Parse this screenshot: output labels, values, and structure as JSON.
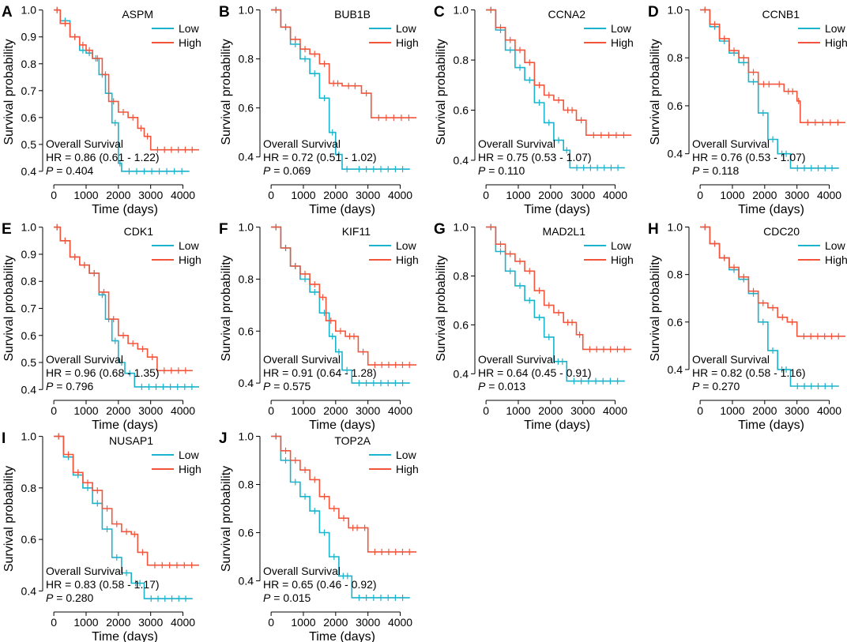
{
  "figure": {
    "colors": {
      "low": "#1ab3cc",
      "high": "#f2553b"
    },
    "stat_label": "Overall Survival",
    "hr_prefix": "HR = ",
    "p_label": "P",
    "p_sep": " = "
  },
  "chart_data": [
    {
      "type": "line",
      "panel": "A",
      "gene": "ASPM",
      "title": "ASPM",
      "xlabel": "Time (days)",
      "ylabel": "Survival probability",
      "xticks": [
        0,
        1000,
        2000,
        3000,
        4000
      ],
      "xlim": [
        -150,
        4550
      ],
      "yticks": [
        "0.4",
        "0.5",
        "0.6",
        "0.7",
        "0.8",
        "0.9",
        "1.0"
      ],
      "ylim": [
        0.385,
        1.005
      ],
      "hr": "0.86 (0.61 -  1.22)",
      "p": "0.404",
      "legend": [
        "Low",
        "High"
      ],
      "series": [
        {
          "name": "Low",
          "x": [
            0,
            200,
            500,
            800,
            1000,
            1200,
            1400,
            1600,
            1800,
            2000,
            2100,
            4200
          ],
          "y": [
            1.0,
            0.96,
            0.9,
            0.85,
            0.84,
            0.82,
            0.76,
            0.69,
            0.58,
            0.43,
            0.4,
            0.4
          ]
        },
        {
          "name": "High",
          "x": [
            0,
            200,
            500,
            800,
            1000,
            1200,
            1500,
            1700,
            2000,
            2300,
            2600,
            2800,
            3000,
            4500
          ],
          "y": [
            1.0,
            0.95,
            0.9,
            0.87,
            0.85,
            0.82,
            0.76,
            0.66,
            0.62,
            0.6,
            0.56,
            0.53,
            0.48,
            0.48
          ]
        }
      ]
    },
    {
      "type": "line",
      "panel": "B",
      "gene": "BUB1B",
      "title": "BUB1B",
      "xlabel": "Time (days)",
      "ylabel": "Survival probability",
      "xticks": [
        0,
        1000,
        2000,
        3000,
        4000
      ],
      "xlim": [
        -150,
        4550
      ],
      "yticks": [
        "0.4",
        "0.6",
        "0.8",
        "1.0"
      ],
      "ylim": [
        0.325,
        1.005
      ],
      "hr": "0.72 (0.51 -  1.02)",
      "p": "0.069",
      "legend": [
        "Low",
        "High"
      ],
      "series": [
        {
          "name": "Low",
          "x": [
            0,
            300,
            600,
            900,
            1200,
            1500,
            1800,
            2000,
            2200,
            2500,
            4300
          ],
          "y": [
            1.0,
            0.93,
            0.86,
            0.8,
            0.74,
            0.64,
            0.5,
            0.41,
            0.35,
            0.35,
            0.35
          ]
        },
        {
          "name": "High",
          "x": [
            0,
            300,
            600,
            900,
            1200,
            1500,
            1800,
            2200,
            2800,
            3100,
            4500
          ],
          "y": [
            1.0,
            0.93,
            0.88,
            0.84,
            0.82,
            0.78,
            0.7,
            0.69,
            0.66,
            0.56,
            0.56
          ]
        }
      ]
    },
    {
      "type": "line",
      "panel": "C",
      "gene": "CCNA2",
      "title": "CCNA2",
      "xlabel": "Time (days)",
      "ylabel": "Survival probability",
      "xticks": [
        0,
        1000,
        2000,
        3000,
        4000
      ],
      "xlim": [
        -150,
        4550
      ],
      "yticks": [
        "0.4",
        "0.6",
        "0.8",
        "1.0"
      ],
      "ylim": [
        0.34,
        1.005
      ],
      "hr": "0.75 (0.53 -  1.07)",
      "p": "0.110",
      "legend": [
        "Low",
        "High"
      ],
      "series": [
        {
          "name": "Low",
          "x": [
            0,
            300,
            600,
            900,
            1200,
            1500,
            1800,
            2100,
            2400,
            2600,
            4300
          ],
          "y": [
            1.0,
            0.92,
            0.84,
            0.77,
            0.72,
            0.63,
            0.55,
            0.48,
            0.44,
            0.37,
            0.37
          ]
        },
        {
          "name": "High",
          "x": [
            0,
            300,
            600,
            900,
            1200,
            1500,
            1800,
            2100,
            2400,
            2800,
            3100,
            4500
          ],
          "y": [
            1.0,
            0.93,
            0.88,
            0.84,
            0.79,
            0.7,
            0.66,
            0.64,
            0.6,
            0.56,
            0.5,
            0.5
          ]
        }
      ]
    },
    {
      "type": "line",
      "panel": "D",
      "gene": "CCNB1",
      "title": "CCNB1",
      "xlabel": "Time (days)",
      "ylabel": "Survival probability",
      "xticks": [
        0,
        1000,
        2000,
        3000,
        4000
      ],
      "xlim": [
        -150,
        4550
      ],
      "yticks": [
        "0.4",
        "0.6",
        "0.8",
        "1.0"
      ],
      "ylim": [
        0.31,
        1.005
      ],
      "hr": "0.76 (0.53 -  1.07)",
      "p": "0.118",
      "legend": [
        "Low",
        "High"
      ],
      "series": [
        {
          "name": "Low",
          "x": [
            0,
            300,
            600,
            900,
            1200,
            1500,
            1800,
            2100,
            2400,
            2800,
            4300
          ],
          "y": [
            1.0,
            0.93,
            0.87,
            0.82,
            0.78,
            0.7,
            0.57,
            0.46,
            0.4,
            0.34,
            0.34
          ]
        },
        {
          "name": "High",
          "x": [
            0,
            300,
            600,
            900,
            1200,
            1500,
            1800,
            2300,
            2600,
            3000,
            3100,
            4500
          ],
          "y": [
            1.0,
            0.94,
            0.88,
            0.83,
            0.8,
            0.74,
            0.69,
            0.69,
            0.66,
            0.62,
            0.53,
            0.53
          ]
        }
      ]
    },
    {
      "type": "line",
      "panel": "E",
      "gene": "CDK1",
      "title": "CDK1",
      "xlabel": "Time (days)",
      "ylabel": "Survival probability",
      "xticks": [
        0,
        1000,
        2000,
        3000,
        4000
      ],
      "xlim": [
        -150,
        4550
      ],
      "yticks": [
        "0.4",
        "0.5",
        "0.6",
        "0.7",
        "0.8",
        "0.9",
        "1.0"
      ],
      "ylim": [
        0.395,
        1.005
      ],
      "hr": "0.96 (0.68 -  1.35)",
      "p": "0.796",
      "legend": [
        "Low",
        "High"
      ],
      "series": [
        {
          "name": "Low",
          "x": [
            0,
            200,
            500,
            800,
            1100,
            1400,
            1600,
            1800,
            2000,
            2200,
            2500,
            4500
          ],
          "y": [
            1.0,
            0.95,
            0.89,
            0.86,
            0.83,
            0.75,
            0.66,
            0.58,
            0.5,
            0.46,
            0.41,
            0.41
          ]
        },
        {
          "name": "High",
          "x": [
            0,
            200,
            500,
            800,
            1100,
            1400,
            1700,
            2000,
            2300,
            2600,
            2900,
            3200,
            4300
          ],
          "y": [
            1.0,
            0.95,
            0.89,
            0.86,
            0.83,
            0.76,
            0.66,
            0.6,
            0.57,
            0.55,
            0.52,
            0.47,
            0.47
          ]
        }
      ]
    },
    {
      "type": "line",
      "panel": "F",
      "gene": "KIF11",
      "title": "KIF11",
      "xlabel": "Time (days)",
      "ylabel": "Survival probability",
      "xticks": [
        0,
        1000,
        2000,
        3000,
        4000
      ],
      "xlim": [
        -150,
        4550
      ],
      "yticks": [
        "0.4",
        "0.6",
        "0.8",
        "1.0"
      ],
      "ylim": [
        0.37,
        1.005
      ],
      "hr": "0.91 (0.64 -  1.28)",
      "p": "0.575",
      "legend": [
        "Low",
        "High"
      ],
      "series": [
        {
          "name": "Low",
          "x": [
            0,
            300,
            600,
            900,
            1200,
            1500,
            1800,
            2000,
            2200,
            2500,
            4300
          ],
          "y": [
            1.0,
            0.92,
            0.85,
            0.8,
            0.75,
            0.67,
            0.58,
            0.52,
            0.45,
            0.4,
            0.4
          ]
        },
        {
          "name": "High",
          "x": [
            0,
            300,
            600,
            900,
            1200,
            1500,
            1700,
            2000,
            2300,
            2700,
            3000,
            4500
          ],
          "y": [
            1.0,
            0.92,
            0.85,
            0.82,
            0.78,
            0.73,
            0.64,
            0.6,
            0.58,
            0.52,
            0.47,
            0.47
          ]
        }
      ]
    },
    {
      "type": "line",
      "panel": "G",
      "gene": "MAD2L1",
      "title": "MAD2L1",
      "xlabel": "Time (days)",
      "ylabel": "Survival probability",
      "xticks": [
        0,
        1000,
        2000,
        3000,
        4000
      ],
      "xlim": [
        -150,
        4550
      ],
      "yticks": [
        "0.4",
        "0.6",
        "0.8",
        "1.0"
      ],
      "ylim": [
        0.33,
        1.005
      ],
      "hr": "0.64 (0.45 -  0.91)",
      "p": "0.013",
      "legend": [
        "Low",
        "High"
      ],
      "series": [
        {
          "name": "Low",
          "x": [
            0,
            300,
            600,
            900,
            1200,
            1500,
            1800,
            2100,
            2500,
            4300
          ],
          "y": [
            1.0,
            0.9,
            0.82,
            0.76,
            0.7,
            0.63,
            0.55,
            0.45,
            0.37,
            0.37
          ]
        },
        {
          "name": "High",
          "x": [
            0,
            300,
            600,
            900,
            1200,
            1500,
            1800,
            2100,
            2400,
            2800,
            3000,
            4500
          ],
          "y": [
            1.0,
            0.93,
            0.89,
            0.86,
            0.82,
            0.74,
            0.68,
            0.65,
            0.61,
            0.56,
            0.5,
            0.5
          ]
        }
      ]
    },
    {
      "type": "line",
      "panel": "H",
      "gene": "CDC20",
      "title": "CDC20",
      "xlabel": "Time (days)",
      "ylabel": "Survival probability",
      "xticks": [
        0,
        1000,
        2000,
        3000,
        4000
      ],
      "xlim": [
        -150,
        4550
      ],
      "yticks": [
        "0.4",
        "0.6",
        "0.8",
        "1.0"
      ],
      "ylim": [
        0.31,
        1.005
      ],
      "hr": "0.82 (0.58 -  1.16)",
      "p": "0.270",
      "legend": [
        "Low",
        "High"
      ],
      "series": [
        {
          "name": "Low",
          "x": [
            0,
            300,
            600,
            900,
            1200,
            1500,
            1800,
            2100,
            2400,
            2800,
            4300
          ],
          "y": [
            1.0,
            0.93,
            0.87,
            0.82,
            0.78,
            0.72,
            0.6,
            0.48,
            0.4,
            0.33,
            0.33
          ]
        },
        {
          "name": "High",
          "x": [
            0,
            300,
            600,
            900,
            1200,
            1500,
            1800,
            2100,
            2400,
            2700,
            3000,
            4500
          ],
          "y": [
            1.0,
            0.93,
            0.87,
            0.83,
            0.79,
            0.73,
            0.68,
            0.66,
            0.62,
            0.6,
            0.54,
            0.54
          ]
        }
      ]
    },
    {
      "type": "line",
      "panel": "I",
      "gene": "NUSAP1",
      "title": "NUSAP1",
      "xlabel": "Time (days)",
      "ylabel": "Survival probability",
      "xticks": [
        0,
        1000,
        2000,
        3000,
        4000
      ],
      "xlim": [
        -150,
        4550
      ],
      "yticks": [
        "0.4",
        "0.6",
        "0.8",
        "1.0"
      ],
      "ylim": [
        0.355,
        1.005
      ],
      "hr": "0.83 (0.58 -  1.17)",
      "p": "0.280",
      "legend": [
        "Low",
        "High"
      ],
      "series": [
        {
          "name": "Low",
          "x": [
            0,
            300,
            600,
            900,
            1200,
            1500,
            1800,
            2100,
            2400,
            2800,
            4300
          ],
          "y": [
            1.0,
            0.92,
            0.85,
            0.8,
            0.74,
            0.64,
            0.53,
            0.47,
            0.43,
            0.37,
            0.37
          ]
        },
        {
          "name": "High",
          "x": [
            0,
            300,
            600,
            900,
            1200,
            1500,
            1800,
            2100,
            2400,
            2600,
            2900,
            4500
          ],
          "y": [
            1.0,
            0.93,
            0.86,
            0.82,
            0.79,
            0.72,
            0.66,
            0.63,
            0.62,
            0.55,
            0.5,
            0.5
          ]
        }
      ]
    },
    {
      "type": "line",
      "panel": "J",
      "gene": "TOP2A",
      "title": "TOP2A",
      "xlabel": "Time (days)",
      "ylabel": "Survival probability",
      "xticks": [
        0,
        1000,
        2000,
        3000,
        4000
      ],
      "xlim": [
        -150,
        4550
      ],
      "yticks": [
        "0.4",
        "0.6",
        "0.8",
        "1.0"
      ],
      "ylim": [
        0.31,
        1.005
      ],
      "hr": "0.65 (0.46 -  0.92)",
      "p": "0.015",
      "legend": [
        "Low",
        "High"
      ],
      "series": [
        {
          "name": "Low",
          "x": [
            0,
            300,
            600,
            900,
            1200,
            1500,
            1800,
            2100,
            2500,
            4300
          ],
          "y": [
            1.0,
            0.9,
            0.81,
            0.75,
            0.69,
            0.6,
            0.5,
            0.42,
            0.33,
            0.33
          ]
        },
        {
          "name": "High",
          "x": [
            0,
            300,
            600,
            900,
            1200,
            1500,
            1800,
            2100,
            2400,
            2800,
            3000,
            4500
          ],
          "y": [
            1.0,
            0.94,
            0.9,
            0.86,
            0.82,
            0.75,
            0.7,
            0.66,
            0.62,
            0.62,
            0.52,
            0.52
          ]
        }
      ]
    }
  ]
}
